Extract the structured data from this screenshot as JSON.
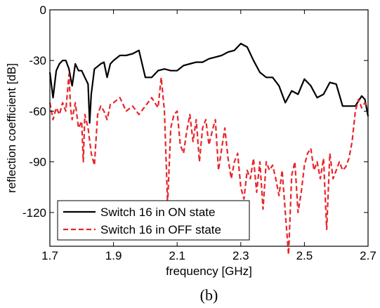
{
  "chart_data": {
    "type": "line",
    "title": "",
    "xlabel": "frequency [GHz]",
    "ylabel": "reflection coefficient [dB]",
    "xlim": [
      1.7,
      2.7
    ],
    "ylim": [
      -140,
      0
    ],
    "xticks": [
      "1.7",
      "1.9",
      "2.1",
      "2.3",
      "2.5",
      "2.7"
    ],
    "yticks": [
      "0",
      "-30",
      "-60",
      "-90",
      "-120"
    ],
    "grid": false,
    "legend_position": "bottom-left",
    "caption": "(b)",
    "series": [
      {
        "name": "Switch 16 in ON state",
        "color": "#000000",
        "style": "solid",
        "x": [
          1.7,
          1.71,
          1.72,
          1.73,
          1.74,
          1.75,
          1.76,
          1.77,
          1.78,
          1.79,
          1.8,
          1.81,
          1.82,
          1.825,
          1.83,
          1.84,
          1.86,
          1.87,
          1.88,
          1.89,
          1.9,
          1.92,
          1.94,
          1.96,
          1.98,
          2.0,
          2.02,
          2.04,
          2.06,
          2.08,
          2.1,
          2.12,
          2.14,
          2.16,
          2.18,
          2.2,
          2.22,
          2.24,
          2.26,
          2.28,
          2.3,
          2.32,
          2.34,
          2.36,
          2.38,
          2.4,
          2.42,
          2.44,
          2.46,
          2.48,
          2.5,
          2.52,
          2.54,
          2.56,
          2.58,
          2.6,
          2.62,
          2.64,
          2.66,
          2.68,
          2.69,
          2.7
        ],
        "y": [
          -37,
          -52,
          -36,
          -32,
          -30,
          -30,
          -35,
          -45,
          -32,
          -36,
          -36,
          -40,
          -44,
          -67,
          -50,
          -35,
          -32,
          -31,
          -40,
          -32,
          -30,
          -27,
          -27,
          -26,
          -24,
          -40,
          -40,
          -36,
          -35,
          -36,
          -36,
          -33,
          -32,
          -31,
          -31,
          -29,
          -28,
          -27,
          -25,
          -24,
          -20,
          -22,
          -30,
          -37,
          -40,
          -40,
          -45,
          -55,
          -48,
          -50,
          -41,
          -45,
          -52,
          -50,
          -43,
          -44,
          -57,
          -57,
          -57,
          -51,
          -53,
          -63
        ]
      },
      {
        "name": "Switch 16 in OFF state",
        "color": "#e8262b",
        "style": "dashed",
        "x": [
          1.7,
          1.71,
          1.72,
          1.73,
          1.74,
          1.75,
          1.76,
          1.765,
          1.77,
          1.78,
          1.79,
          1.8,
          1.805,
          1.81,
          1.82,
          1.83,
          1.84,
          1.85,
          1.86,
          1.87,
          1.88,
          1.89,
          1.9,
          1.92,
          1.94,
          1.96,
          1.98,
          2.0,
          2.02,
          2.04,
          2.05,
          2.06,
          2.07,
          2.08,
          2.09,
          2.1,
          2.11,
          2.12,
          2.13,
          2.14,
          2.15,
          2.16,
          2.17,
          2.18,
          2.19,
          2.2,
          2.21,
          2.22,
          2.23,
          2.24,
          2.25,
          2.26,
          2.27,
          2.28,
          2.29,
          2.3,
          2.31,
          2.32,
          2.33,
          2.34,
          2.35,
          2.36,
          2.37,
          2.38,
          2.39,
          2.4,
          2.41,
          2.42,
          2.43,
          2.44,
          2.45,
          2.46,
          2.47,
          2.48,
          2.49,
          2.5,
          2.51,
          2.52,
          2.53,
          2.54,
          2.55,
          2.56,
          2.57,
          2.58,
          2.59,
          2.6,
          2.61,
          2.62,
          2.63,
          2.64,
          2.65,
          2.66,
          2.67,
          2.68,
          2.69,
          2.7
        ],
        "y": [
          -55,
          -65,
          -58,
          -62,
          -55,
          -60,
          -38,
          -58,
          -65,
          -55,
          -70,
          -66,
          -90,
          -62,
          -70,
          -85,
          -92,
          -62,
          -57,
          -60,
          -65,
          -56,
          -55,
          -52,
          -60,
          -57,
          -62,
          -57,
          -52,
          -58,
          -40,
          -60,
          -115,
          -70,
          -62,
          -60,
          -80,
          -85,
          -72,
          -62,
          -78,
          -65,
          -90,
          -70,
          -65,
          -80,
          -72,
          -65,
          -95,
          -82,
          -70,
          -88,
          -100,
          -90,
          -85,
          -105,
          -112,
          -95,
          -100,
          -88,
          -108,
          -90,
          -118,
          -90,
          -95,
          -92,
          -100,
          -110,
          -95,
          -120,
          -145,
          -98,
          -90,
          -120,
          -108,
          -92,
          -85,
          -82,
          -95,
          -90,
          -100,
          -88,
          -130,
          -85,
          -100,
          -95,
          -90,
          -95,
          -93,
          -88,
          -78,
          -60,
          -53,
          -58,
          -55,
          -58
        ]
      }
    ]
  }
}
